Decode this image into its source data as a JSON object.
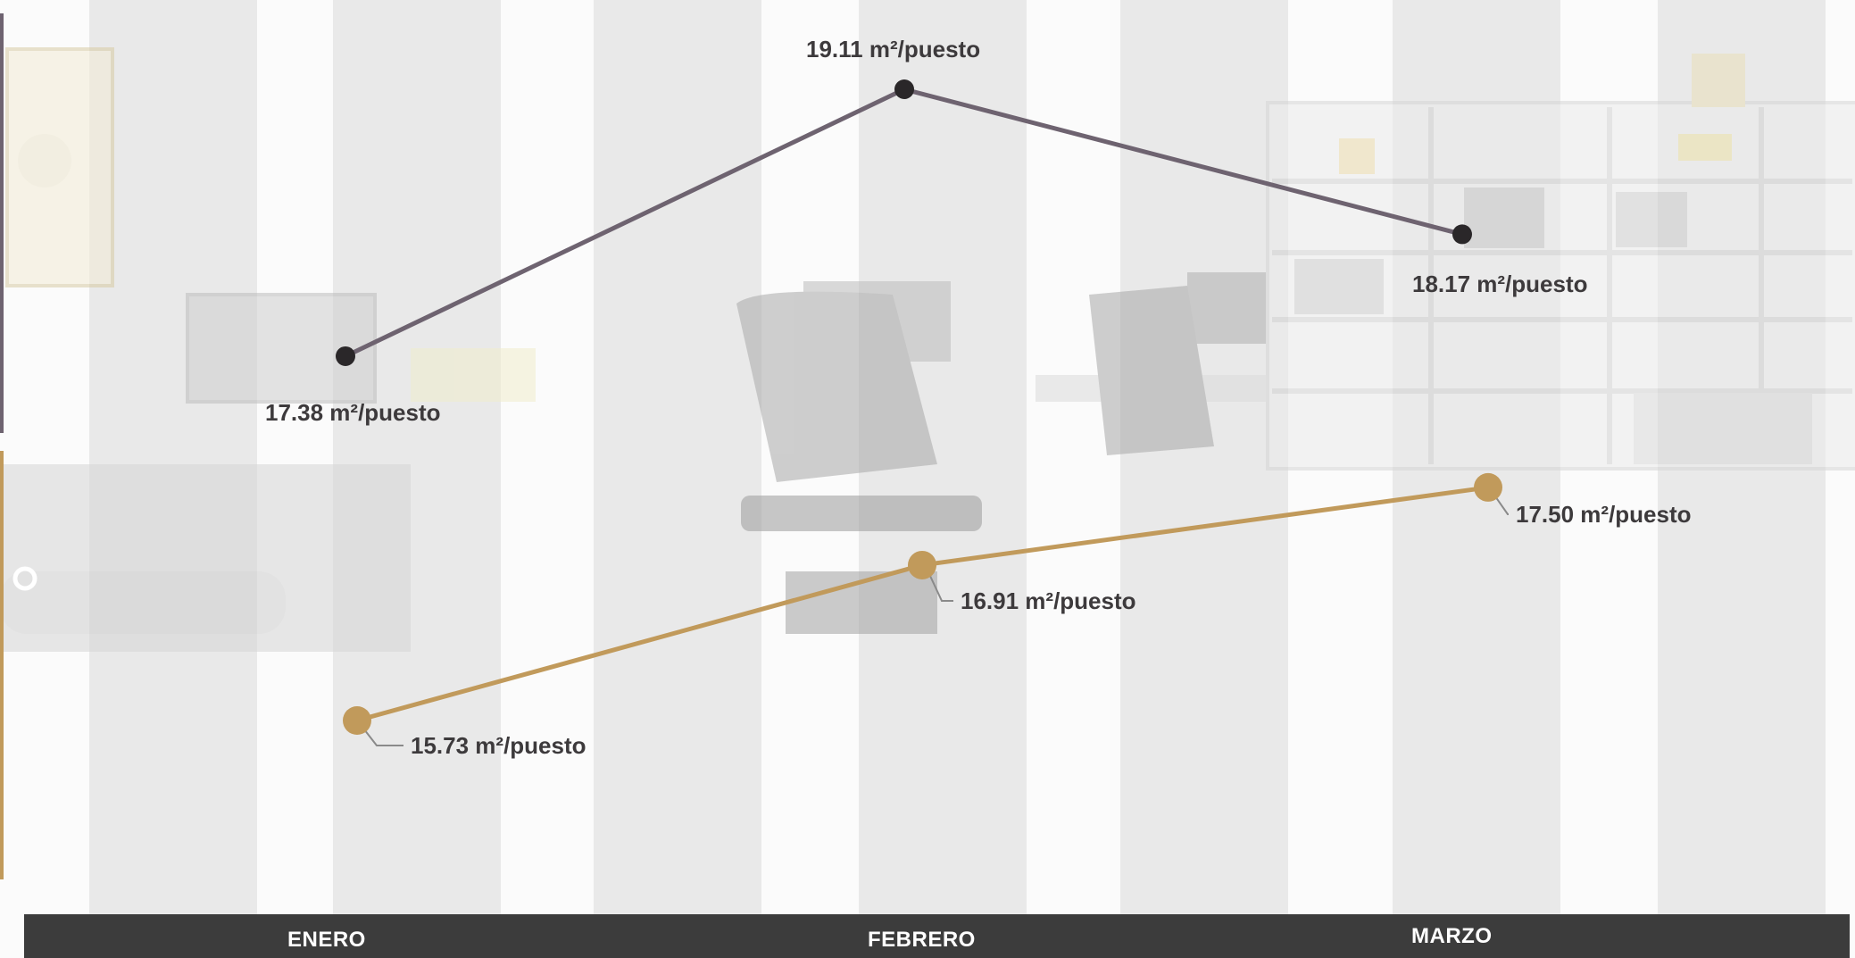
{
  "chart_data": {
    "type": "line",
    "categories": [
      "ENERO",
      "FEBRERO",
      "MARZO"
    ],
    "series": [
      {
        "color": "#6e6370",
        "point_color": "#2a2729",
        "values": [
          17.38,
          19.11,
          18.17
        ],
        "labels": [
          "17.38 m²/puesto",
          "19.11 m²/puesto",
          "18.17 m²/puesto"
        ]
      },
      {
        "color": "#c19a5b",
        "point_color": "#c19a5b",
        "values": [
          15.73,
          16.91,
          17.5
        ],
        "labels": [
          "15.73 m²/puesto",
          "16.91 m²/puesto",
          "17.50 m²/puesto"
        ]
      }
    ],
    "grid": false,
    "legend": "none"
  },
  "colors": {
    "month_bar": "#3c3c3c",
    "month_text": "#ffffff",
    "stripe": "#e6e6e6"
  }
}
